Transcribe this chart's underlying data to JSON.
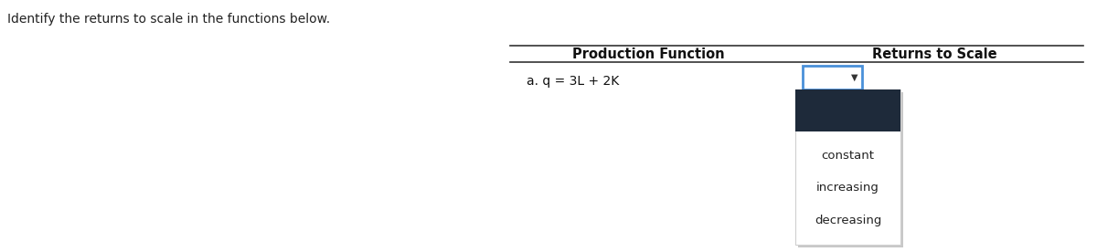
{
  "instruction": "Identify the returns to scale in the functions below.",
  "instruction_fontsize": 10,
  "col1_header": "Production Function",
  "col2_header": "Returns to Scale",
  "header_fontsize": 10.5,
  "row_label": "a. q = 3L + 2K",
  "row_fontsize": 10,
  "arrow_char": "▼",
  "dark_box_color": "#1e2a3a",
  "dropdown_border_color": "#4A90D9",
  "dropdown_fill": "#ffffff",
  "menu_bg": "#ffffff",
  "menu_border": "#d0d0d0",
  "menu_shadow": "#c8c8c8",
  "menu_items": [
    "constant",
    "increasing",
    "decreasing"
  ],
  "menu_fontsize": 9.5,
  "line_color": "#333333",
  "background_color": "#ffffff",
  "fig_width": 12.0,
  "fig_height": 2.76,
  "dpi": 100
}
